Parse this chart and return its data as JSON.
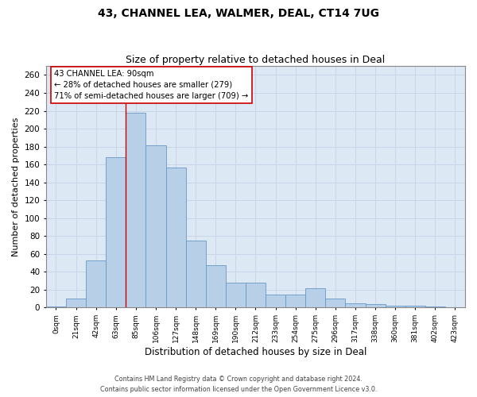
{
  "title": "43, CHANNEL LEA, WALMER, DEAL, CT14 7UG",
  "subtitle": "Size of property relative to detached houses in Deal",
  "xlabel": "Distribution of detached houses by size in Deal",
  "ylabel": "Number of detached properties",
  "categories": [
    "0sqm",
    "21sqm",
    "42sqm",
    "63sqm",
    "85sqm",
    "106sqm",
    "127sqm",
    "148sqm",
    "169sqm",
    "190sqm",
    "212sqm",
    "233sqm",
    "254sqm",
    "275sqm",
    "296sqm",
    "317sqm",
    "338sqm",
    "360sqm",
    "381sqm",
    "402sqm",
    "423sqm"
  ],
  "bar_values": [
    1,
    10,
    53,
    168,
    218,
    181,
    157,
    75,
    47,
    28,
    28,
    15,
    15,
    22,
    10,
    5,
    4,
    2,
    2,
    1,
    0
  ],
  "bar_color": "#b8cfe8",
  "bar_edge_color": "#6898c8",
  "property_line_x": 4.0,
  "property_line_color": "#cc0000",
  "annotation_text": "43 CHANNEL LEA: 90sqm\n← 28% of detached houses are smaller (279)\n71% of semi-detached houses are larger (709) →",
  "annotation_box_color": "#ffffff",
  "annotation_box_edge": "#cc0000",
  "ylim": [
    0,
    270
  ],
  "yticks": [
    0,
    20,
    40,
    60,
    80,
    100,
    120,
    140,
    160,
    180,
    200,
    220,
    240,
    260
  ],
  "grid_color": "#c8d4e8",
  "bg_color": "#dce8f4",
  "footer_line1": "Contains HM Land Registry data © Crown copyright and database right 2024.",
  "footer_line2": "Contains public sector information licensed under the Open Government Licence v3.0."
}
